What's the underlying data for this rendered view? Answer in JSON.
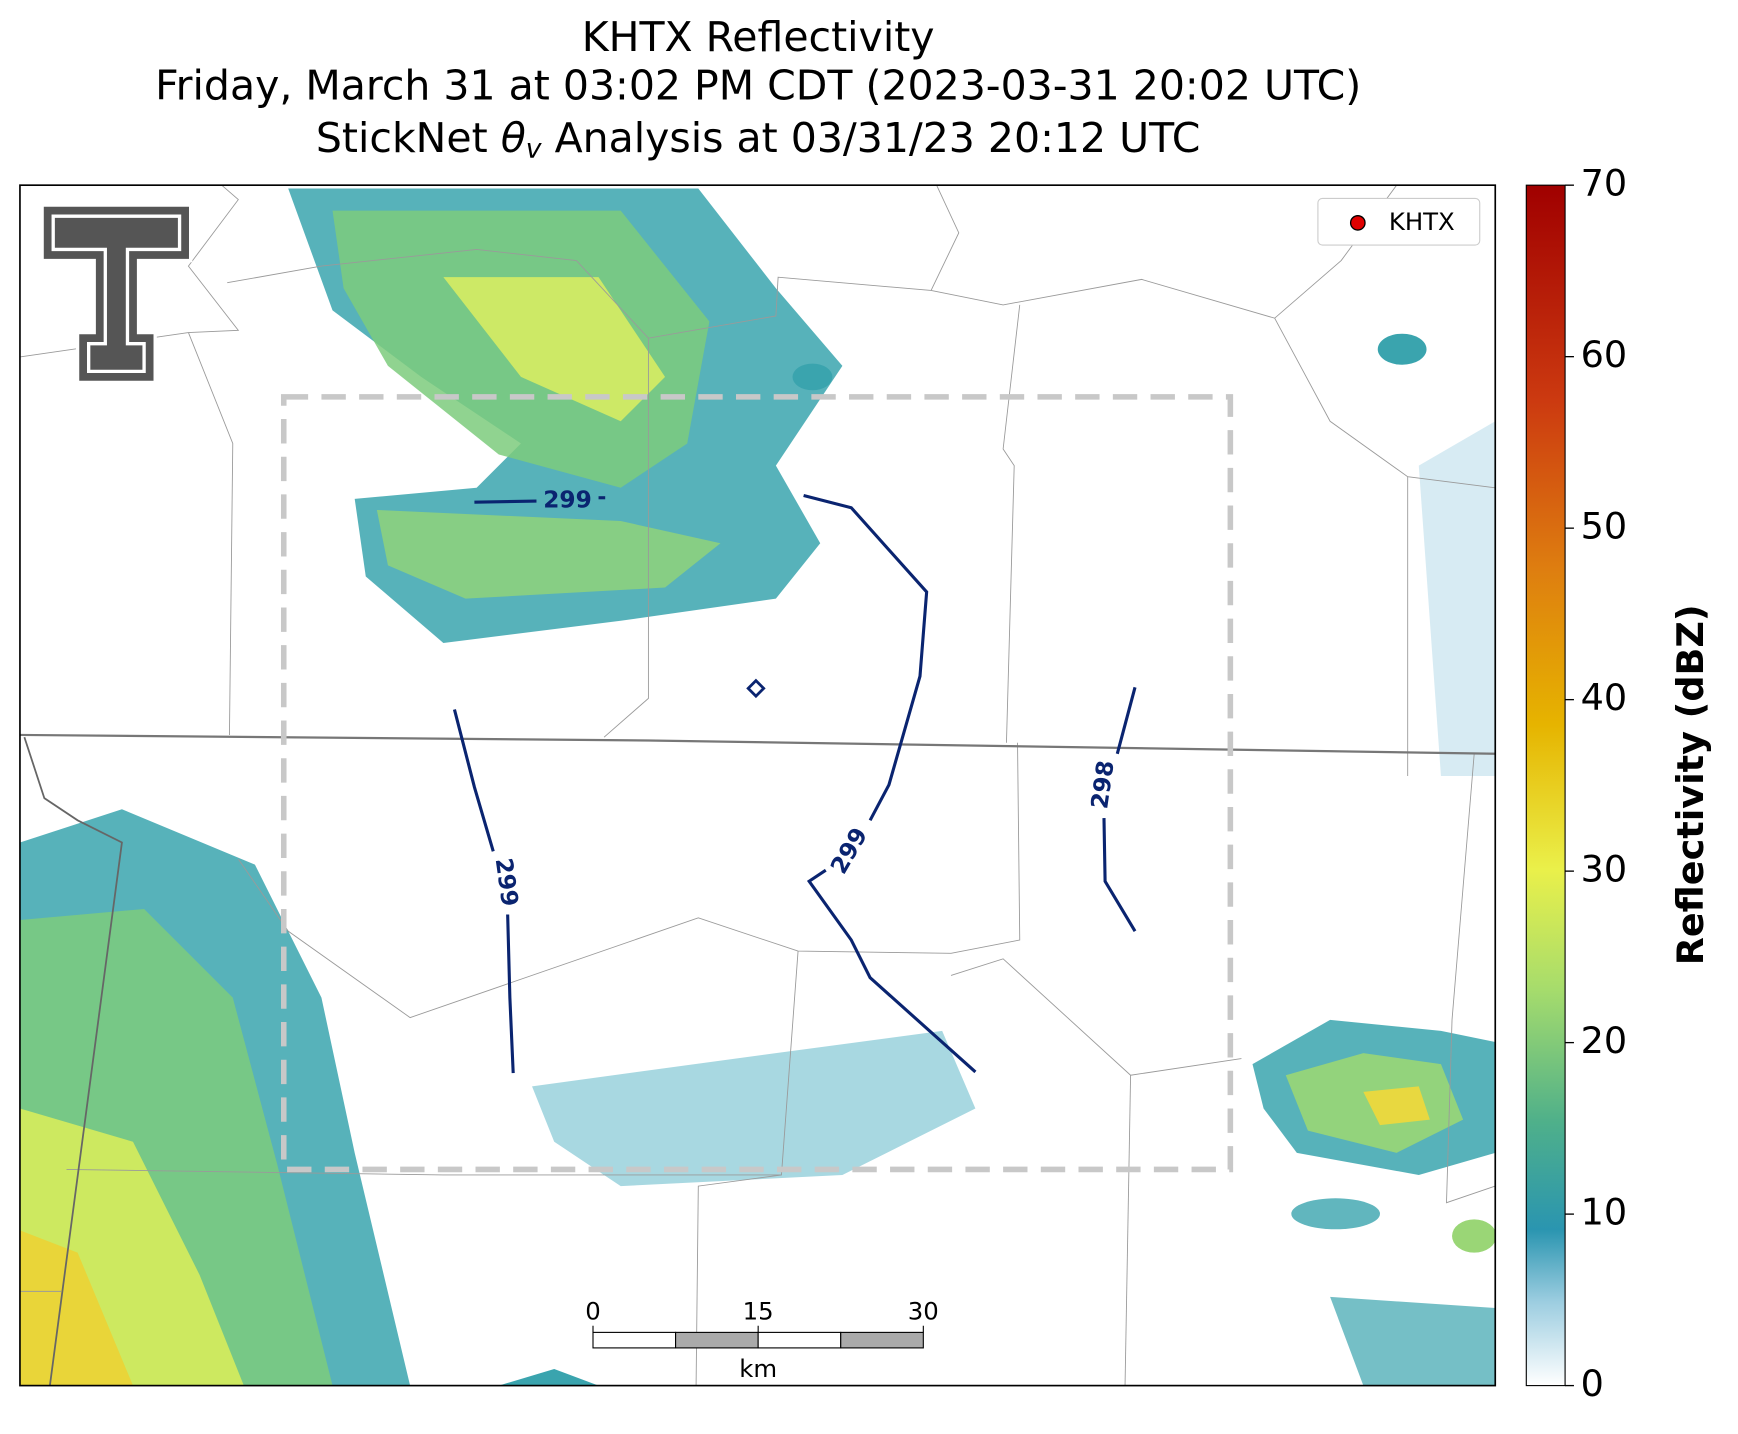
{
  "title": {
    "line1": "KHTX Reflectivity",
    "line2": "Friday, March 31 at 03:02 PM CDT (2023-03-31 20:02 UTC)",
    "line3": {
      "before": "StickNet ",
      "symbol": "θ",
      "subscript": "v",
      "after": " Analysis at 03/31/23 20:12 UTC"
    }
  },
  "legend": [
    "KHTX"
  ],
  "contour_labels": [
    299,
    299,
    299,
    298
  ],
  "colorbar": {
    "label": "Reflectivity (dBZ)",
    "lim": [
      0,
      70
    ],
    "ticks": [
      0,
      10,
      20,
      30,
      40,
      50,
      60,
      70
    ]
  },
  "scale_bar": {
    "lim": [
      0,
      30
    ],
    "ticks": [
      0,
      15,
      30
    ],
    "unit": "km"
  }
}
